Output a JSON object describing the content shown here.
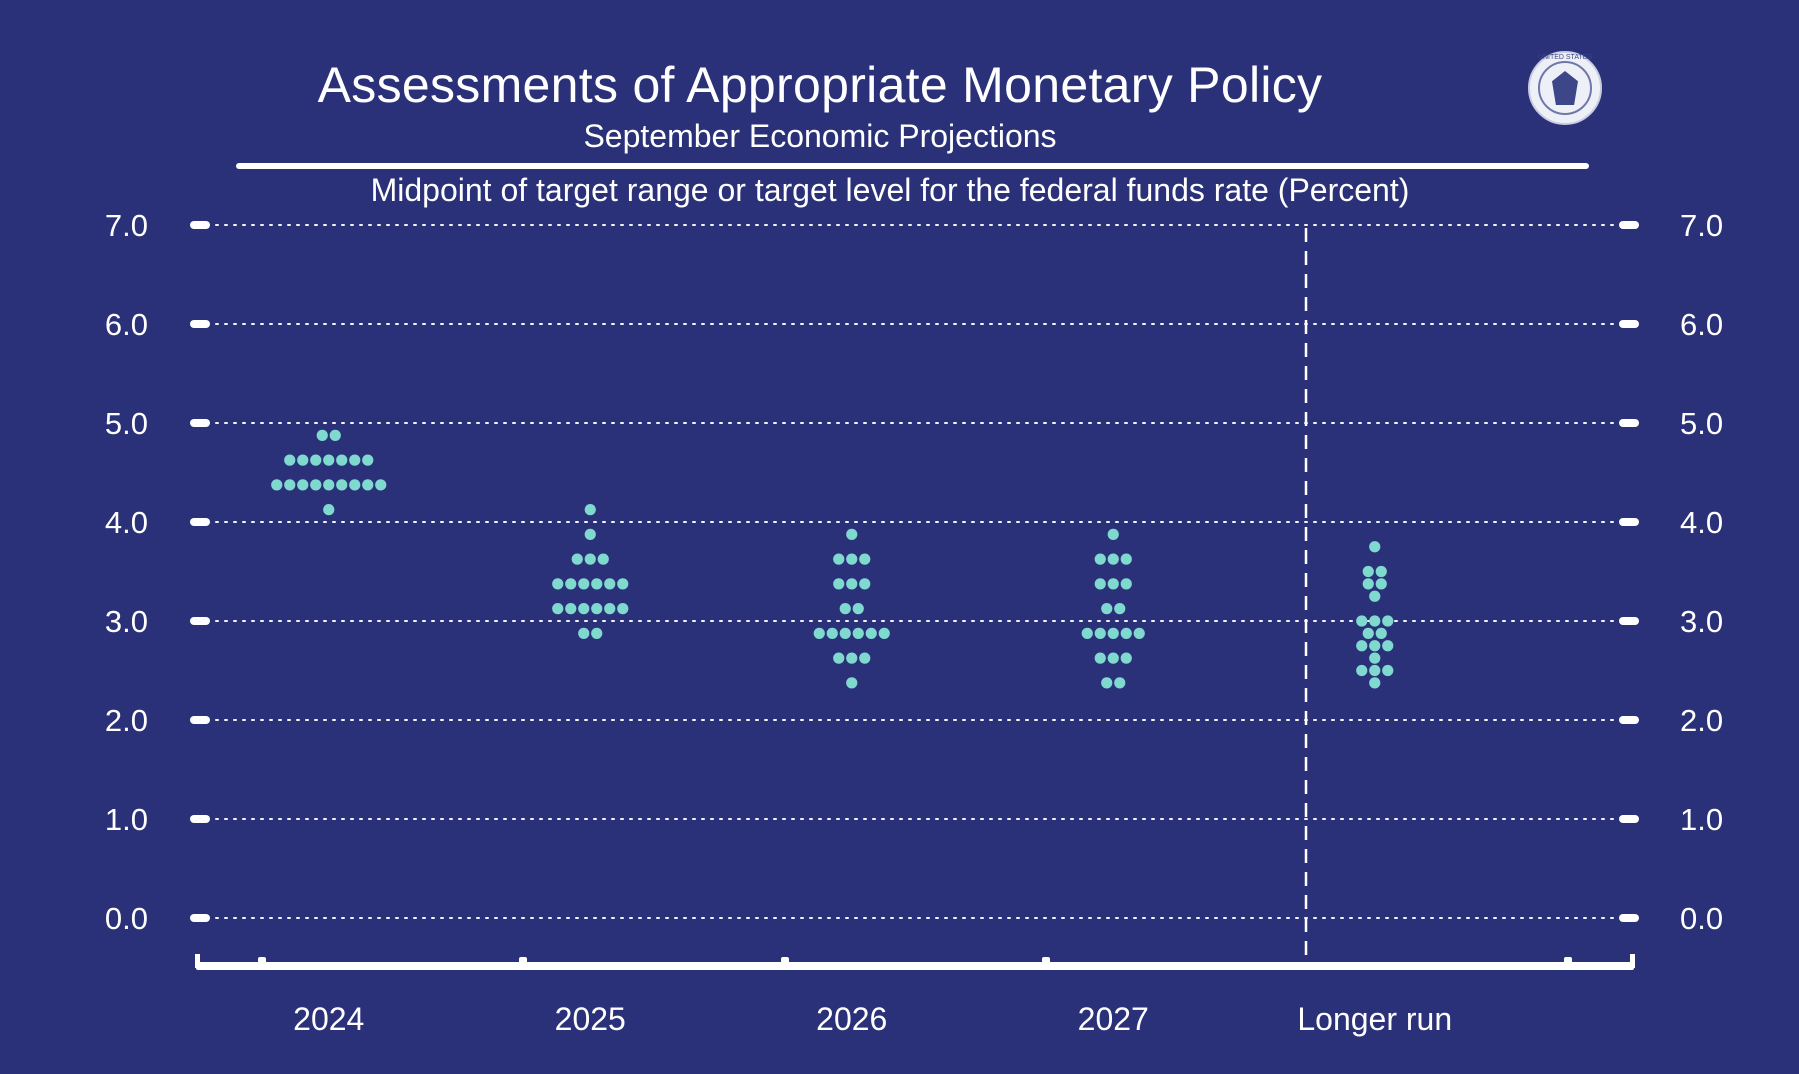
{
  "header": {
    "title": "Assessments of Appropriate Monetary Policy",
    "subtitle": "September Economic Projections",
    "seal_text": "UNITED STATES"
  },
  "chart_data": {
    "type": "scatter",
    "title": "Assessments of Appropriate Monetary Policy",
    "subtitle": "September Economic Projections",
    "ylabel": "Midpoint of target range or target level for the federal funds rate (Percent)",
    "xlabel": "",
    "ylim": [
      0,
      7
    ],
    "yticks": [
      "0.0",
      "1.0",
      "2.0",
      "3.0",
      "4.0",
      "5.0",
      "6.0",
      "7.0"
    ],
    "categories": [
      "2024",
      "2025",
      "2026",
      "2027",
      "Longer run"
    ],
    "grid": true,
    "longer_run_separator": true,
    "dots": [
      {
        "category": "2024",
        "points": [
          {
            "rate": 4.875,
            "count": 2
          },
          {
            "rate": 4.625,
            "count": 7
          },
          {
            "rate": 4.375,
            "count": 9
          },
          {
            "rate": 4.125,
            "count": 1
          }
        ]
      },
      {
        "category": "2025",
        "points": [
          {
            "rate": 4.125,
            "count": 1
          },
          {
            "rate": 3.875,
            "count": 1
          },
          {
            "rate": 3.625,
            "count": 3
          },
          {
            "rate": 3.375,
            "count": 6
          },
          {
            "rate": 3.125,
            "count": 6
          },
          {
            "rate": 2.875,
            "count": 2
          }
        ]
      },
      {
        "category": "2026",
        "points": [
          {
            "rate": 3.875,
            "count": 1
          },
          {
            "rate": 3.625,
            "count": 3
          },
          {
            "rate": 3.375,
            "count": 3
          },
          {
            "rate": 3.125,
            "count": 2
          },
          {
            "rate": 2.875,
            "count": 6
          },
          {
            "rate": 2.625,
            "count": 3
          },
          {
            "rate": 2.375,
            "count": 1
          }
        ]
      },
      {
        "category": "2027",
        "points": [
          {
            "rate": 3.875,
            "count": 1
          },
          {
            "rate": 3.625,
            "count": 3
          },
          {
            "rate": 3.375,
            "count": 3
          },
          {
            "rate": 3.125,
            "count": 2
          },
          {
            "rate": 2.875,
            "count": 5
          },
          {
            "rate": 2.625,
            "count": 3
          },
          {
            "rate": 2.375,
            "count": 2
          }
        ]
      },
      {
        "category": "Longer run",
        "points": [
          {
            "rate": 3.75,
            "count": 1
          },
          {
            "rate": 3.5,
            "count": 2
          },
          {
            "rate": 3.375,
            "count": 2
          },
          {
            "rate": 3.25,
            "count": 1
          },
          {
            "rate": 3.0,
            "count": 3
          },
          {
            "rate": 2.875,
            "count": 2
          },
          {
            "rate": 2.75,
            "count": 3
          },
          {
            "rate": 2.625,
            "count": 1
          },
          {
            "rate": 2.5,
            "count": 3
          },
          {
            "rate": 2.375,
            "count": 1
          }
        ]
      }
    ],
    "colors": {
      "background": "#2b3179",
      "dot": "#7fd9cf",
      "axis": "#ffffff"
    }
  }
}
